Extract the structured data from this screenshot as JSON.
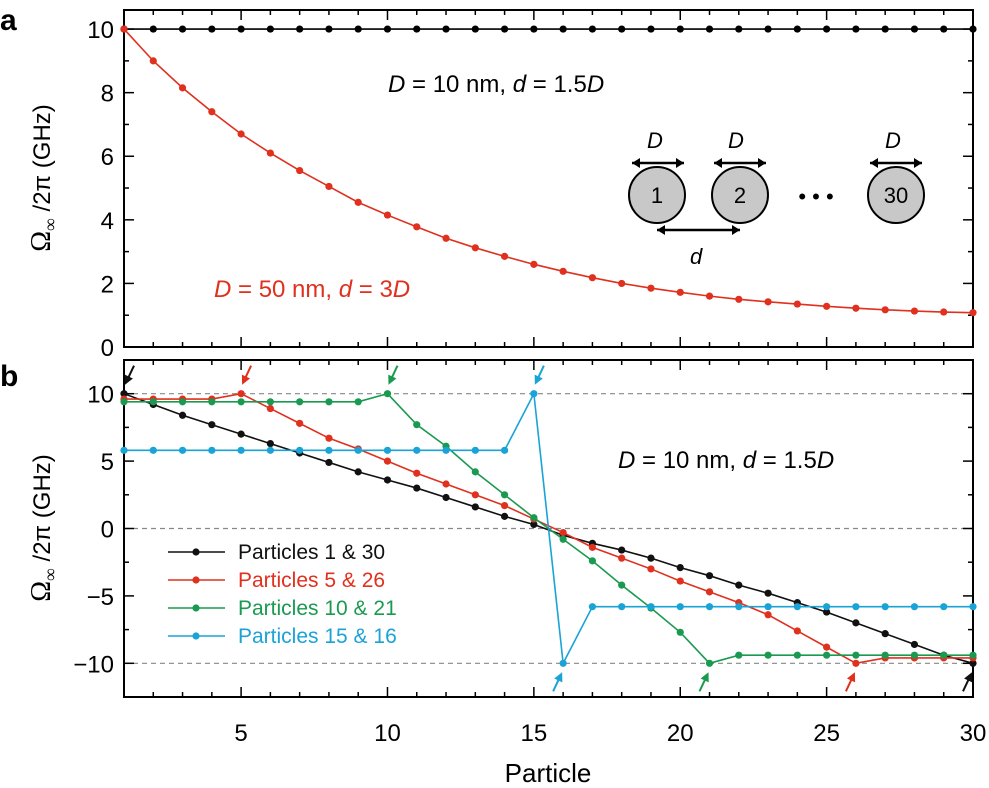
{
  "figure": {
    "xlabel": "Particle",
    "xticks": [
      5,
      10,
      15,
      20,
      25,
      30
    ]
  },
  "chart_data": [
    {
      "panel": "a",
      "type": "line",
      "ylabel_symbol": "Ω",
      "ylabel_sub": "∞",
      "ylabel_rest": " /2π (GHz)",
      "xlim": [
        1,
        30
      ],
      "ylim": [
        0,
        10.6
      ],
      "yticks": [
        0,
        2,
        4,
        6,
        8,
        10
      ],
      "xlabel": "Particle",
      "annotation_black": {
        "D_label": "D",
        "eq1": " = 10 nm, ",
        "d_label": "d",
        "eq2": " = 1.5",
        "D2_label": "D"
      },
      "annotation_red": {
        "D_label": "D",
        "eq1": " = 50 nm, ",
        "d_label": "d",
        "eq2": " = 3",
        "D2_label": "D"
      },
      "inset": {
        "D_label": "D",
        "d_label": "d",
        "particles": [
          "1",
          "2",
          "30"
        ],
        "ellipsis": "• • •"
      },
      "series": [
        {
          "name": "D = 10 nm, d = 1.5D",
          "color": "#000000",
          "x": [
            1,
            2,
            3,
            4,
            5,
            6,
            7,
            8,
            9,
            10,
            11,
            12,
            13,
            14,
            15,
            16,
            17,
            18,
            19,
            20,
            21,
            22,
            23,
            24,
            25,
            26,
            27,
            28,
            29,
            30
          ],
          "values": [
            10,
            10,
            10,
            10,
            10,
            10,
            10,
            10,
            10,
            10,
            10,
            10,
            10,
            10,
            10,
            10,
            10,
            10,
            10,
            10,
            10,
            10,
            10,
            10,
            10,
            10,
            10,
            10,
            10,
            10
          ]
        },
        {
          "name": "D = 50 nm, d = 3D",
          "color": "#e0301e",
          "x": [
            1,
            2,
            3,
            4,
            5,
            6,
            7,
            8,
            9,
            10,
            11,
            12,
            13,
            14,
            15,
            16,
            17,
            18,
            19,
            20,
            21,
            22,
            23,
            24,
            25,
            26,
            27,
            28,
            29,
            30
          ],
          "values": [
            10,
            9.0,
            8.15,
            7.4,
            6.7,
            6.1,
            5.55,
            5.05,
            4.55,
            4.15,
            3.78,
            3.42,
            3.12,
            2.85,
            2.6,
            2.38,
            2.18,
            2.0,
            1.85,
            1.72,
            1.6,
            1.5,
            1.42,
            1.35,
            1.28,
            1.22,
            1.17,
            1.13,
            1.1,
            1.08
          ]
        }
      ]
    },
    {
      "panel": "b",
      "type": "line",
      "ylabel_symbol": "Ω",
      "ylabel_sub": "∞",
      "ylabel_rest": " /2π (GHz)",
      "xlim": [
        1,
        30
      ],
      "ylim": [
        -12.5,
        12.5
      ],
      "yticks": [
        10,
        5,
        0,
        -5,
        -10
      ],
      "ytick_labels": [
        "10",
        "5",
        "0",
        "−5",
        "−10"
      ],
      "reference_lines": [
        10,
        0,
        -10
      ],
      "xlabel": "Particle",
      "annotation": {
        "D_label": "D",
        "eq1": " = 10 nm, ",
        "d_label": "d",
        "eq2": " = 1.5",
        "D2_label": "D"
      },
      "legend_position": "lower-left",
      "series": [
        {
          "name": "Particles 1 & 30",
          "color": "#111111",
          "x": [
            1,
            2,
            3,
            4,
            5,
            6,
            7,
            8,
            9,
            10,
            11,
            12,
            13,
            14,
            15,
            16,
            17,
            18,
            19,
            20,
            21,
            22,
            23,
            24,
            25,
            26,
            27,
            28,
            29,
            30
          ],
          "values": [
            10,
            9.2,
            8.4,
            7.7,
            7.0,
            6.3,
            5.6,
            4.9,
            4.2,
            3.6,
            3.0,
            2.3,
            1.6,
            0.9,
            0.3,
            -0.5,
            -1.1,
            -1.6,
            -2.2,
            -2.9,
            -3.5,
            -4.2,
            -4.8,
            -5.5,
            -6.2,
            -7.0,
            -7.8,
            -8.6,
            -9.4,
            -10
          ]
        },
        {
          "name": "Particles 5 & 26",
          "color": "#e0301e",
          "x": [
            1,
            2,
            3,
            4,
            5,
            6,
            7,
            8,
            9,
            10,
            11,
            12,
            13,
            14,
            15,
            16,
            17,
            18,
            19,
            20,
            21,
            22,
            23,
            24,
            25,
            26,
            27,
            28,
            29,
            30
          ],
          "values": [
            9.6,
            9.6,
            9.6,
            9.6,
            10,
            8.9,
            7.8,
            6.7,
            5.9,
            5.0,
            4.1,
            3.3,
            2.5,
            1.7,
            0.7,
            -0.3,
            -1.4,
            -2.2,
            -3.0,
            -3.9,
            -4.7,
            -5.5,
            -6.4,
            -7.6,
            -8.8,
            -10,
            -9.6,
            -9.6,
            -9.6,
            -9.6
          ]
        },
        {
          "name": "Particles 10 & 21",
          "color": "#1a9a50",
          "x": [
            1,
            2,
            3,
            4,
            5,
            6,
            7,
            8,
            9,
            10,
            11,
            12,
            13,
            14,
            15,
            16,
            17,
            18,
            19,
            20,
            21,
            22,
            23,
            24,
            25,
            26,
            27,
            28,
            29,
            30
          ],
          "values": [
            9.4,
            9.4,
            9.4,
            9.4,
            9.4,
            9.4,
            9.4,
            9.4,
            9.4,
            10,
            7.7,
            6.1,
            4.2,
            2.5,
            0.8,
            -0.8,
            -2.4,
            -4.2,
            -5.9,
            -7.7,
            -10,
            -9.4,
            -9.4,
            -9.4,
            -9.4,
            -9.4,
            -9.4,
            -9.4,
            -9.4,
            -9.4
          ]
        },
        {
          "name": "Particles 15 & 16",
          "color": "#1aa3d6",
          "x": [
            1,
            2,
            3,
            4,
            5,
            6,
            7,
            8,
            9,
            10,
            11,
            12,
            13,
            14,
            15,
            16,
            17,
            18,
            19,
            20,
            21,
            22,
            23,
            24,
            25,
            26,
            27,
            28,
            29,
            30
          ],
          "values": [
            5.8,
            5.8,
            5.8,
            5.8,
            5.8,
            5.8,
            5.8,
            5.8,
            5.8,
            5.8,
            5.8,
            5.8,
            5.8,
            5.8,
            10,
            -10,
            -5.8,
            -5.8,
            -5.8,
            -5.8,
            -5.8,
            -5.8,
            -5.8,
            -5.8,
            -5.8,
            -5.8,
            -5.8,
            -5.8,
            -5.8,
            -5.8
          ]
        }
      ],
      "arrows": [
        {
          "x": 1,
          "y": 10,
          "color": "#111111",
          "dir": "down-left"
        },
        {
          "x": 5,
          "y": 10,
          "color": "#e0301e",
          "dir": "down-left"
        },
        {
          "x": 10,
          "y": 10,
          "color": "#1a9a50",
          "dir": "down-left"
        },
        {
          "x": 15,
          "y": 10,
          "color": "#1aa3d6",
          "dir": "down-left"
        },
        {
          "x": 16,
          "y": -10,
          "color": "#1aa3d6",
          "dir": "up-right"
        },
        {
          "x": 21,
          "y": -10,
          "color": "#1a9a50",
          "dir": "up-right"
        },
        {
          "x": 26,
          "y": -10,
          "color": "#e0301e",
          "dir": "up-right"
        },
        {
          "x": 30,
          "y": -10,
          "color": "#111111",
          "dir": "up-right"
        }
      ]
    }
  ]
}
